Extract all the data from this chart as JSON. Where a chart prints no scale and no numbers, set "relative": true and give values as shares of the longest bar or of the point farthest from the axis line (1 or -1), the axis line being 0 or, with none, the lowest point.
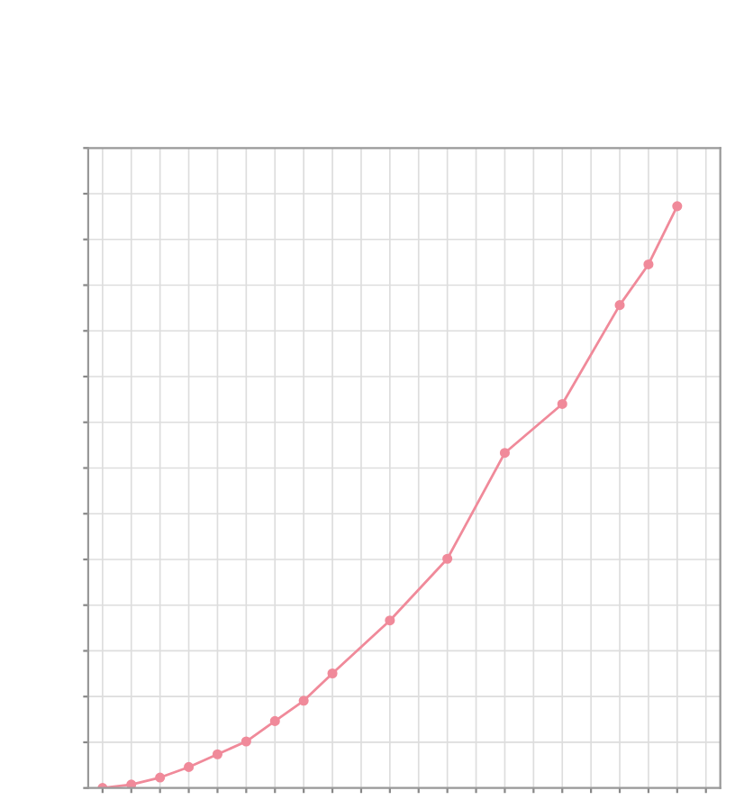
{
  "chart_data": {
    "type": "line",
    "relative": true,
    "grid": true,
    "marker": "circle",
    "line_style": "solid",
    "categories": [
      null,
      null,
      null,
      null,
      null,
      null,
      null,
      null,
      null,
      null,
      null,
      null,
      null,
      null,
      null,
      null,
      null,
      null,
      null,
      null,
      null,
      null
    ],
    "series": [
      {
        "color": "#f08a9a",
        "values": [
          0.0,
          0.006,
          0.018,
          0.036,
          0.058,
          0.08,
          0.115,
          0.15,
          0.197,
          null,
          0.288,
          null,
          0.394,
          null,
          0.576,
          null,
          0.66,
          null,
          0.83,
          0.9,
          1.0,
          null
        ]
      }
    ]
  }
}
